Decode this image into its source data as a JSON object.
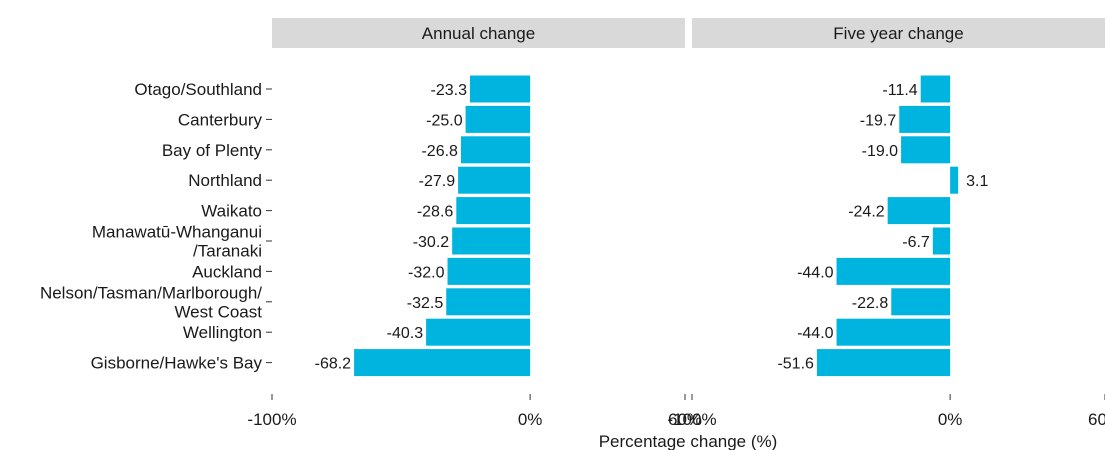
{
  "chart_data": {
    "type": "bar",
    "orientation": "horizontal",
    "xlabel": "Percentage change (%)",
    "xlim": [
      -100,
      60
    ],
    "xticks": [
      -100,
      0,
      60
    ],
    "xtick_labels": [
      "-100%",
      "0%",
      "60%"
    ],
    "grid": false,
    "bar_color": "#00b4e0",
    "strip_color": "#d9d9d9",
    "categories": [
      "Otago/Southland",
      "Canterbury",
      "Bay of Plenty",
      "Northland",
      "Waikato",
      "Manawatū-Whanganui\n/Taranaki",
      "Auckland",
      "Nelson/Tasman/Marlborough/\nWest Coast",
      "Wellington",
      "Gisborne/Hawke's Bay"
    ],
    "panels": [
      {
        "title": "Annual change",
        "values": [
          -23.3,
          -25.0,
          -26.8,
          -27.9,
          -28.6,
          -30.2,
          -32.0,
          -32.5,
          -40.3,
          -68.2
        ],
        "value_labels": [
          "-23.3",
          "-25.0",
          "-26.8",
          "-27.9",
          "-28.6",
          "-30.2",
          "-32.0",
          "-32.5",
          "-40.3",
          "-68.2"
        ]
      },
      {
        "title": "Five year change",
        "values": [
          -11.4,
          -19.7,
          -19.0,
          3.1,
          -24.2,
          -6.7,
          -44.0,
          -22.8,
          -44.0,
          -51.6
        ],
        "value_labels": [
          "-11.4",
          "-19.7",
          "-19.0",
          "3.1",
          "-24.2",
          "-6.7",
          "-44.0",
          "-22.8",
          "-44.0",
          "-51.6"
        ]
      }
    ]
  }
}
